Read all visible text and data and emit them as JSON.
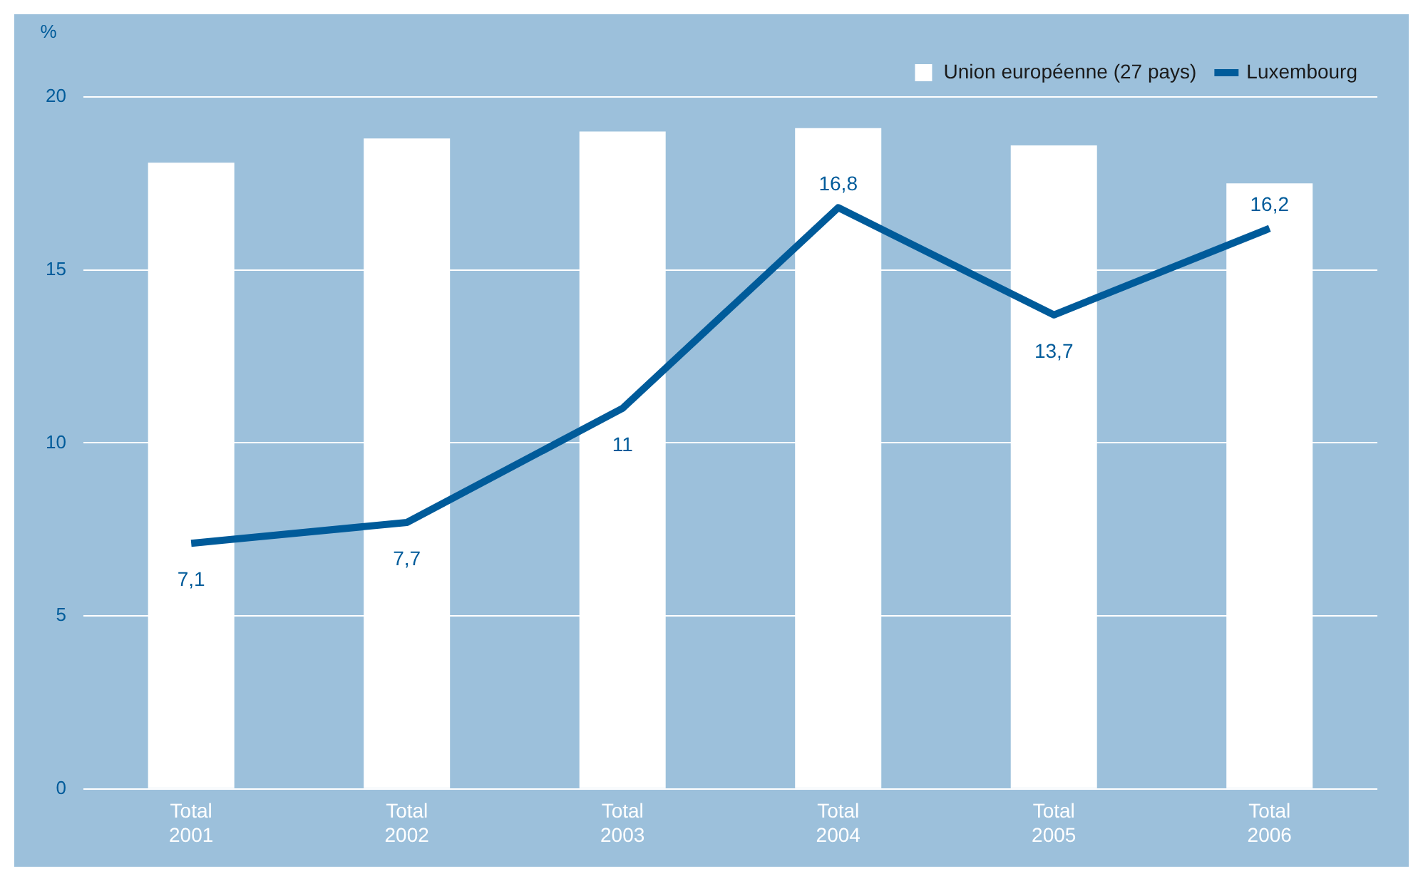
{
  "chart_data": {
    "type": "bar",
    "ylabel": "%",
    "categories": [
      "Total\n2001",
      "Total\n2002",
      "Total\n2003",
      "Total\n2004",
      "Total\n2005",
      "Total\n2006"
    ],
    "series": [
      {
        "name": "Union européenne (27 pays)",
        "color": "#ffffff",
        "values": [
          18.1,
          18.8,
          19.0,
          19.1,
          18.6,
          17.5
        ]
      },
      {
        "name": "Luxembourg",
        "type": "line",
        "color": "#005b9a",
        "values": [
          7.1,
          7.7,
          11,
          16.8,
          13.7,
          16.2
        ],
        "value_labels": [
          "7,1",
          "7,7",
          "11",
          "16,8",
          "13,7",
          "16,2"
        ]
      }
    ],
    "ylim": [
      0,
      20
    ],
    "yticks": [
      0,
      5,
      10,
      15,
      20
    ],
    "grid": "y",
    "legend": "top right"
  }
}
